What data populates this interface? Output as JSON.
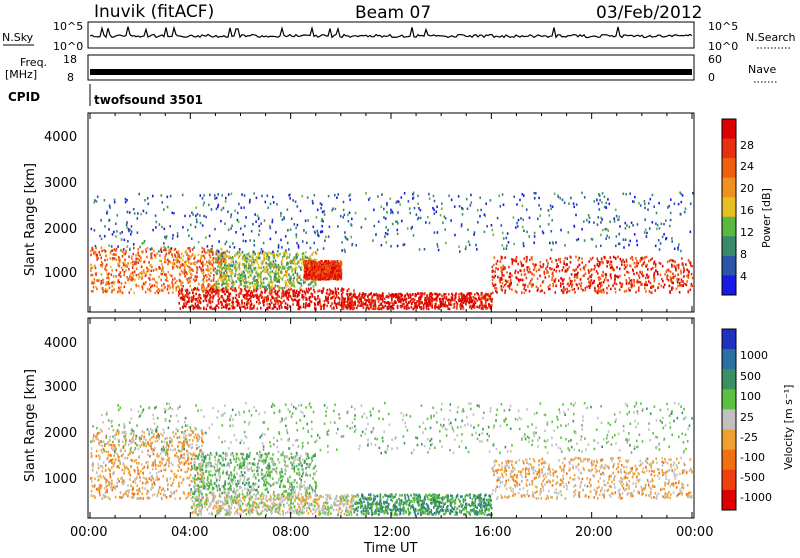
{
  "header": {
    "station": "Inuvik (fitACF)",
    "beam": "Beam 07",
    "date": "03/Feb/2012"
  },
  "top_panels": {
    "nsky_label": "N.Sky",
    "nsky_ticks": [
      "10^5",
      "10^0"
    ],
    "nsearch_label": "N.Search",
    "nsearch_ticks": [
      "10^5",
      "10^0"
    ],
    "freq_label": "Freq.",
    "freq_unit": "[MHz]",
    "freq_ticks": [
      "18",
      "8"
    ],
    "nave_label": "Nave",
    "nave_ticks": [
      "60",
      "0"
    ],
    "cpid_label": "CPID",
    "cpid_value": "twofsound 3501"
  },
  "power_panel": {
    "ylabel": "Slant Range [km]",
    "yticks": [
      "4000",
      "3000",
      "2000",
      "1000"
    ],
    "colorbar_label": "Power [dB]",
    "colorbar_ticks": [
      "28",
      "24",
      "20",
      "16",
      "12",
      "8",
      "4"
    ],
    "colors": [
      "#1a1ae6",
      "#2a55a8",
      "#3a8a6a",
      "#5ab840",
      "#e6c020",
      "#f09020",
      "#f06010",
      "#e63010",
      "#dd0000"
    ]
  },
  "velocity_panel": {
    "ylabel": "Slant Range [km]",
    "yticks": [
      "4000",
      "3000",
      "2000",
      "1000"
    ],
    "colorbar_label": "Velocity [m s⁻¹]",
    "colorbar_ticks": [
      "1000",
      "500",
      "100",
      "25",
      "-25",
      "-100",
      "-500",
      "-1000"
    ],
    "colors": [
      "#2030c0",
      "#2a70a0",
      "#3a9060",
      "#5cc040",
      "#c0c0c0",
      "#f0a030",
      "#f07010",
      "#f04010",
      "#dd0000"
    ]
  },
  "xaxis": {
    "ticks": [
      "00:00",
      "04:00",
      "08:00",
      "12:00",
      "16:00",
      "20:00",
      "00:00"
    ],
    "label": "Time UT"
  },
  "chart_data": {
    "type": "heatmap",
    "x_range_hours": [
      0,
      24
    ],
    "y_range_km": [
      180,
      4500
    ],
    "power_clim_db": [
      3,
      30
    ],
    "velocity_clim_ms": [
      -1000,
      1000
    ],
    "regions_power": [
      {
        "t": [
          0,
          5.5
        ],
        "r": [
          600,
          1600
        ],
        "level": 22
      },
      {
        "t": [
          3.5,
          10.5
        ],
        "r": [
          250,
          700
        ],
        "level": 28
      },
      {
        "t": [
          5,
          9
        ],
        "r": [
          700,
          1500
        ],
        "level": 14
      },
      {
        "t": [
          8.5,
          10
        ],
        "r": [
          900,
          1300
        ],
        "level": 26
      },
      {
        "t": [
          10,
          16
        ],
        "r": [
          250,
          600
        ],
        "level": 28
      },
      {
        "t": [
          16,
          24
        ],
        "r": [
          600,
          1400
        ],
        "level": 26
      },
      {
        "t": [
          0,
          24
        ],
        "r": [
          1500,
          2800
        ],
        "level": 8
      }
    ],
    "regions_velocity": [
      {
        "t": [
          0,
          4.5
        ],
        "r": [
          600,
          2100
        ],
        "level": -200
      },
      {
        "t": [
          4,
          10.5
        ],
        "r": [
          250,
          700
        ],
        "level": 0
      },
      {
        "t": [
          4,
          9
        ],
        "r": [
          700,
          1600
        ],
        "level": 200
      },
      {
        "t": [
          10.5,
          16
        ],
        "r": [
          250,
          700
        ],
        "level": 400
      },
      {
        "t": [
          16,
          24
        ],
        "r": [
          600,
          1500
        ],
        "level": -150
      },
      {
        "t": [
          0,
          24
        ],
        "r": [
          1600,
          2700
        ],
        "level": 150
      }
    ]
  }
}
